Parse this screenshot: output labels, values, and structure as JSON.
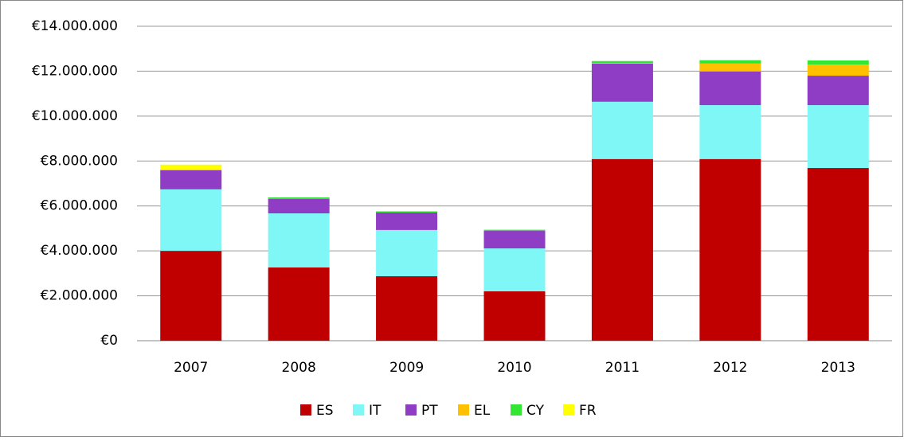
{
  "chart_data": {
    "type": "stacked_bar",
    "categories": [
      "2007",
      "2008",
      "2009",
      "2010",
      "2011",
      "2012",
      "2013"
    ],
    "series": [
      {
        "name": "ES",
        "color": "#c00000",
        "values": [
          4000000,
          3260000,
          2870000,
          2200000,
          8090000,
          8090000,
          7690000
        ]
      },
      {
        "name": "IT",
        "color": "#7ff7f7",
        "values": [
          2740000,
          2410000,
          2060000,
          1910000,
          2550000,
          2400000,
          2800000
        ]
      },
      {
        "name": "PT",
        "color": "#8e3dc4",
        "values": [
          850000,
          640000,
          780000,
          780000,
          1700000,
          1500000,
          1310000
        ]
      },
      {
        "name": "EL",
        "color": "#ffc000",
        "values": [
          0,
          0,
          0,
          0,
          30000,
          350000,
          500000
        ]
      },
      {
        "name": "CY",
        "color": "#33e633",
        "values": [
          20000,
          70000,
          50000,
          50000,
          80000,
          150000,
          180000
        ]
      },
      {
        "name": "FR",
        "color": "#ffff00",
        "values": [
          230000,
          0,
          0,
          0,
          0,
          0,
          0
        ]
      }
    ],
    "ylim": [
      0,
      14000000
    ],
    "yticks": [
      {
        "value": 0,
        "label": "€0"
      },
      {
        "value": 2000000,
        "label": "€2.000.000"
      },
      {
        "value": 4000000,
        "label": "€4.000.000"
      },
      {
        "value": 6000000,
        "label": "€6.000.000"
      },
      {
        "value": 8000000,
        "label": "€8.000.000"
      },
      {
        "value": 10000000,
        "label": "€10.000.000"
      },
      {
        "value": 12000000,
        "label": "€12.000.000"
      },
      {
        "value": 14000000,
        "label": "€14.000.000"
      }
    ],
    "grid": true,
    "legend": "bottom"
  }
}
